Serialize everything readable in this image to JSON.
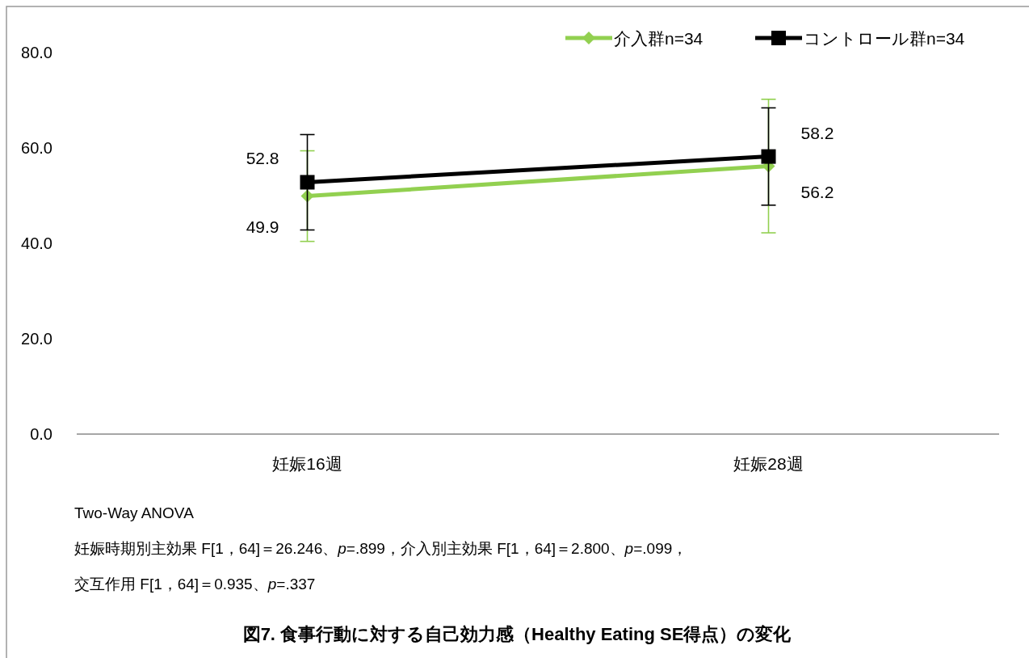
{
  "chart_data": {
    "type": "line",
    "title": "図7.  食事行動に対する自己効力感（Healthy Eating SE得点）の変化",
    "categories": [
      "妊娠16週",
      "妊娠28週"
    ],
    "series": [
      {
        "name": "介入群n=34",
        "color": "#92d050",
        "marker": "diamond",
        "values": [
          49.9,
          56.2
        ],
        "errors": [
          9.5,
          14.0
        ]
      },
      {
        "name": "コントロール群n=34",
        "color": "#000000",
        "marker": "square",
        "values": [
          52.8,
          58.2
        ],
        "errors": [
          10.0,
          10.2
        ]
      }
    ],
    "data_labels": true,
    "ylim": [
      0,
      80
    ],
    "yticks": [
      {
        "value": 0,
        "label": "0.0"
      },
      {
        "value": 20,
        "label": "20.0"
      },
      {
        "value": 40,
        "label": "40.0"
      },
      {
        "value": 60,
        "label": "60.0"
      },
      {
        "value": 80,
        "label": "80.0"
      }
    ],
    "grid": false,
    "legend": "top right",
    "annotations": [
      "Two-Way ANOVA",
      "妊娠時期別主効果 F[1，64]＝26.246、*p*=.899，介入別主効果 F[1，64]＝2.800、*p*=.099，",
      "交互作用 F[1，64]＝0.935、*p*=.337"
    ]
  }
}
